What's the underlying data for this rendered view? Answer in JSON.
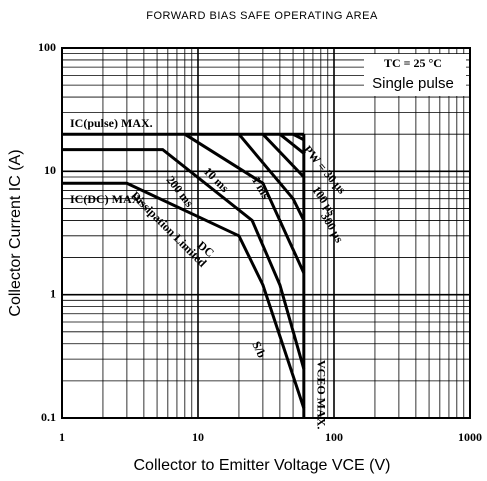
{
  "chart_data": {
    "type": "line",
    "title": "FORWARD BIAS SAFE OPERATING AREA",
    "x_label": "Collector to Emitter Voltage VCE  (V)",
    "y_label": "Collector Current IC  (A)",
    "annotations": [
      "TC = 25 °C",
      "Single pulse"
    ],
    "xscale": "log",
    "yscale": "log",
    "grid": true,
    "xlim": [
      1,
      1000
    ],
    "ylim": [
      0.1,
      100
    ],
    "xticks": [
      1,
      10,
      100,
      1000
    ],
    "yticks": [
      0.1,
      1,
      10,
      100
    ],
    "color": "#000000",
    "series": [
      {
        "name": "IC(pulse) MAX.",
        "x": [
          1,
          60
        ],
        "values": [
          20,
          20
        ]
      },
      {
        "name": "IC(DC) MAX.",
        "x": [
          1,
          3,
          20,
          30,
          60
        ],
        "values": [
          8,
          8,
          3,
          1.2,
          0.12
        ]
      },
      {
        "name": "200 ms",
        "x": [
          1,
          5.5,
          25,
          40,
          60
        ],
        "values": [
          15,
          15,
          4,
          1.2,
          0.25
        ]
      },
      {
        "name": "10 ms",
        "x": [
          8,
          30,
          45,
          60
        ],
        "values": [
          20,
          8,
          3,
          1.5
        ]
      },
      {
        "name": "1 ms",
        "x": [
          20,
          50,
          60
        ],
        "values": [
          20,
          6,
          4
        ]
      },
      {
        "name": "300 µs",
        "x": [
          30,
          60
        ],
        "values": [
          20,
          9
        ]
      },
      {
        "name": "100 µs",
        "x": [
          40,
          60
        ],
        "values": [
          20,
          14
        ]
      },
      {
        "name": "PW = 30 µs",
        "x": [
          50,
          60
        ],
        "values": [
          20,
          18
        ]
      },
      {
        "name": "VCEO MAX.",
        "x": [
          60,
          60
        ],
        "values": [
          0.1,
          20
        ]
      }
    ],
    "line_labels": [
      "DC",
      "Dissipation Limited",
      "S/b"
    ]
  }
}
